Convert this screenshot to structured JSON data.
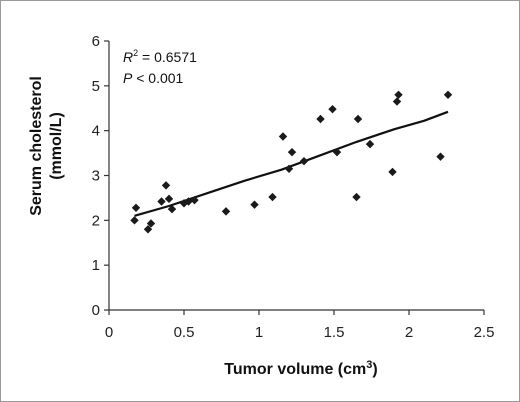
{
  "chart_data": {
    "type": "scatter",
    "title": "",
    "xlabel_main": "Tumor volume (cm",
    "xlabel_sup": "3",
    "xlabel_end": ")",
    "ylabel_line1": "Serum cholesterol",
    "ylabel_line2": "(mmol/L)",
    "xlim": [
      0,
      2.5
    ],
    "ylim": [
      0,
      6
    ],
    "xticks": [
      "0",
      "0.5",
      "1",
      "1.5",
      "2",
      "2.5"
    ],
    "yticks": [
      "0",
      "1",
      "2",
      "3",
      "4",
      "5",
      "6"
    ],
    "grid": false,
    "annotations": {
      "r2_label": "R",
      "r2_sup": "2",
      "r2_value": " = 0.6571",
      "p_label": "P",
      "p_value": " < 0.001"
    },
    "points": [
      {
        "x": 0.17,
        "y": 2.0
      },
      {
        "x": 0.18,
        "y": 2.28
      },
      {
        "x": 0.26,
        "y": 1.8
      },
      {
        "x": 0.28,
        "y": 1.93
      },
      {
        "x": 0.35,
        "y": 2.42
      },
      {
        "x": 0.38,
        "y": 2.78
      },
      {
        "x": 0.4,
        "y": 2.48
      },
      {
        "x": 0.42,
        "y": 2.25
      },
      {
        "x": 0.5,
        "y": 2.38
      },
      {
        "x": 0.53,
        "y": 2.42
      },
      {
        "x": 0.57,
        "y": 2.45
      },
      {
        "x": 0.78,
        "y": 2.2
      },
      {
        "x": 0.97,
        "y": 2.35
      },
      {
        "x": 1.09,
        "y": 2.52
      },
      {
        "x": 1.16,
        "y": 3.87
      },
      {
        "x": 1.2,
        "y": 3.15
      },
      {
        "x": 1.22,
        "y": 3.52
      },
      {
        "x": 1.3,
        "y": 3.32
      },
      {
        "x": 1.41,
        "y": 4.26
      },
      {
        "x": 1.49,
        "y": 4.48
      },
      {
        "x": 1.52,
        "y": 3.52
      },
      {
        "x": 1.65,
        "y": 2.52
      },
      {
        "x": 1.66,
        "y": 4.26
      },
      {
        "x": 1.74,
        "y": 3.7
      },
      {
        "x": 1.89,
        "y": 3.08
      },
      {
        "x": 1.92,
        "y": 4.65
      },
      {
        "x": 1.93,
        "y": 4.8
      },
      {
        "x": 2.21,
        "y": 3.42
      },
      {
        "x": 2.26,
        "y": 4.8
      }
    ],
    "trendline": [
      {
        "x": 0.17,
        "y": 2.1
      },
      {
        "x": 0.4,
        "y": 2.32
      },
      {
        "x": 0.65,
        "y": 2.6
      },
      {
        "x": 0.9,
        "y": 2.88
      },
      {
        "x": 1.15,
        "y": 3.13
      },
      {
        "x": 1.4,
        "y": 3.44
      },
      {
        "x": 1.65,
        "y": 3.75
      },
      {
        "x": 1.9,
        "y": 4.03
      },
      {
        "x": 2.1,
        "y": 4.22
      },
      {
        "x": 2.26,
        "y": 4.42
      }
    ],
    "colors": {
      "marker": "#1a1a1a",
      "line": "#111111",
      "axis": "#333333"
    }
  }
}
